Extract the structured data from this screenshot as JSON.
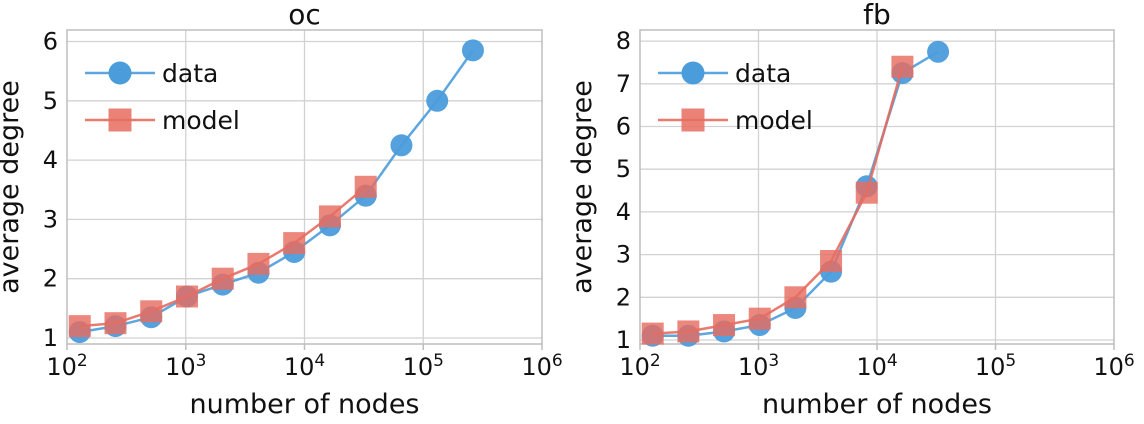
{
  "figure": {
    "background": "#ffffff",
    "text_color": "#111111",
    "grid_color": "#d2d2d2",
    "spine_color": "#bdbdbd"
  },
  "legend": {
    "data_label": "data",
    "model_label": "model"
  },
  "chart_data": [
    {
      "type": "line",
      "title": "oc",
      "xlabel": "number of nodes",
      "ylabel": "average degree",
      "x_scale": "log",
      "x_tick_exponents": [
        2,
        3,
        4,
        5,
        6
      ],
      "y_ticks": [
        1,
        2,
        3,
        4,
        5,
        6
      ],
      "xlim": [
        100,
        1000000
      ],
      "ylim": [
        0.9,
        6.2
      ],
      "grid": true,
      "legend_position": "upper-left",
      "series": [
        {
          "name": "data",
          "marker": "circle",
          "color": "#4b9cdb",
          "x": [
            128,
            256,
            512,
            1024,
            2048,
            4096,
            8192,
            16384,
            32768,
            65536,
            131072,
            262144
          ],
          "y": [
            1.1,
            1.2,
            1.35,
            1.7,
            1.9,
            2.1,
            2.45,
            2.9,
            3.4,
            4.25,
            5.0,
            5.85
          ]
        },
        {
          "name": "model",
          "marker": "square",
          "color": "#e66c60",
          "x": [
            128,
            256,
            512,
            1024,
            2048,
            4096,
            8192,
            16384,
            32768
          ],
          "y": [
            1.2,
            1.25,
            1.45,
            1.7,
            2.0,
            2.25,
            2.6,
            3.05,
            3.55
          ]
        }
      ]
    },
    {
      "type": "line",
      "title": "fb",
      "xlabel": "number of nodes",
      "ylabel": "average degree",
      "x_scale": "log",
      "x_tick_exponents": [
        2,
        3,
        4,
        5,
        6
      ],
      "y_ticks": [
        1,
        2,
        3,
        4,
        5,
        6,
        7,
        8
      ],
      "xlim": [
        100,
        1000000
      ],
      "ylim": [
        0.9,
        8.3
      ],
      "grid": true,
      "legend_position": "upper-left",
      "series": [
        {
          "name": "data",
          "marker": "circle",
          "color": "#4b9cdb",
          "x": [
            128,
            256,
            512,
            1024,
            2048,
            4096,
            8192,
            16384,
            32768
          ],
          "y": [
            1.1,
            1.1,
            1.2,
            1.35,
            1.75,
            2.6,
            4.6,
            7.25,
            7.75
          ]
        },
        {
          "name": "model",
          "marker": "square",
          "color": "#e66c60",
          "x": [
            128,
            256,
            512,
            1024,
            2048,
            4096,
            8192,
            16384
          ],
          "y": [
            1.15,
            1.2,
            1.35,
            1.5,
            2.0,
            2.85,
            4.45,
            7.4
          ]
        }
      ]
    }
  ]
}
